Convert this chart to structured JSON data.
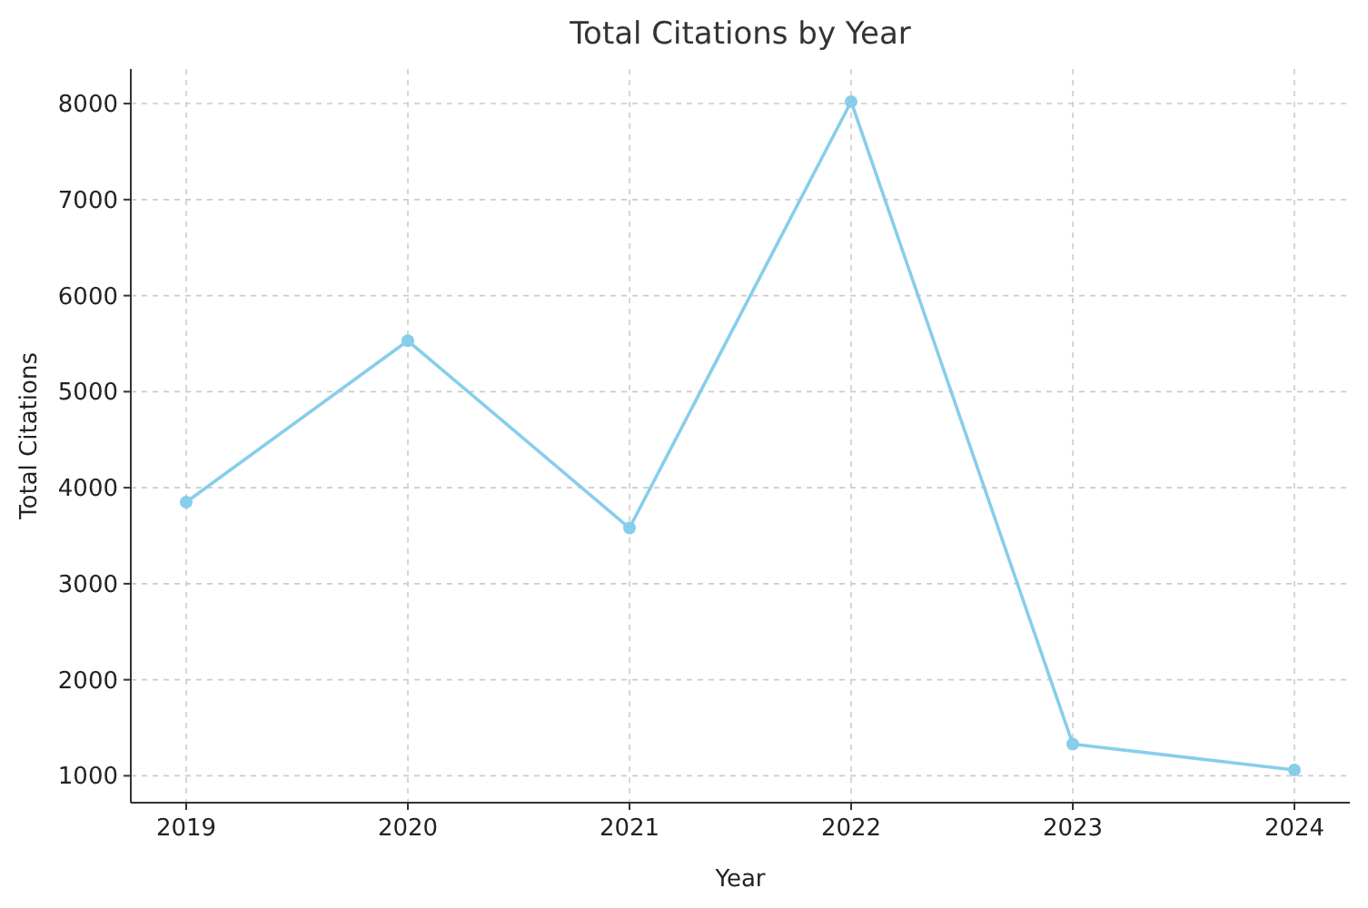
{
  "chart_data": {
    "type": "line",
    "title": "Total Citations by Year",
    "xlabel": "Year",
    "ylabel": "Total Citations",
    "x": [
      2019,
      2020,
      2021,
      2022,
      2023,
      2024
    ],
    "series": [
      {
        "color": "#87ceeb",
        "values": [
          3850,
          5530,
          3580,
          8020,
          1330,
          1060
        ]
      }
    ],
    "xlim": [
      2018.75,
      2024.25
    ],
    "xticks": [
      2019,
      2020,
      2021,
      2022,
      2023,
      2024
    ],
    "ylim": [
      720,
      8360
    ],
    "yticks": [
      1000,
      2000,
      3000,
      4000,
      5000,
      6000,
      7000,
      8000
    ],
    "grid": true,
    "marker": "circle",
    "line_style": "solid"
  }
}
